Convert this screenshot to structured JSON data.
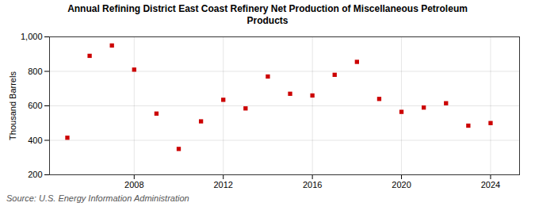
{
  "chart_data": {
    "type": "scatter",
    "title": "Annual Refining District East Coast Refinery Net Production of Miscellaneous Petroleum\nProducts",
    "ylabel": "Thousand Barrels",
    "annotations": [
      "Source: U.S. Energy Information Administration"
    ],
    "x": [
      2005,
      2006,
      2007,
      2008,
      2009,
      2010,
      2011,
      2012,
      2013,
      2014,
      2015,
      2016,
      2017,
      2018,
      2019,
      2020,
      2021,
      2022,
      2023,
      2024
    ],
    "values": [
      415,
      890,
      950,
      810,
      555,
      350,
      510,
      635,
      585,
      770,
      670,
      660,
      780,
      855,
      640,
      565,
      590,
      615,
      485,
      500
    ],
    "color": "#cc0000",
    "marker": "square",
    "xlim": [
      2004.2,
      2025.3
    ],
    "xticks": [
      2008,
      2012,
      2016,
      2020,
      2024
    ],
    "ylim": [
      200,
      1000
    ],
    "yticks": [
      200,
      400,
      600,
      800,
      {
        "value": 1000,
        "label": "1,000"
      }
    ],
    "grid": true
  }
}
